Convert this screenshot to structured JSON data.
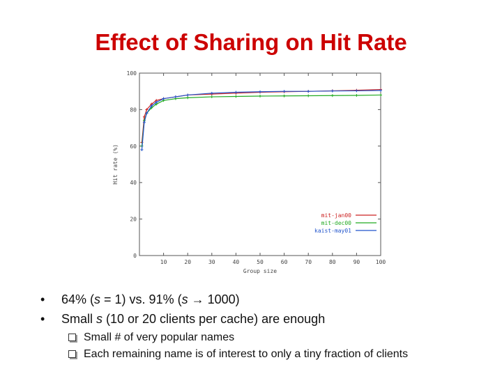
{
  "slide": {
    "title": "Effect of Sharing on Hit Rate",
    "bullets": [
      {
        "prefix": "64%  (",
        "v1": "s",
        "mid": " = 1) vs. 91% (",
        "v2": "s",
        "suffix": " → 1000)"
      },
      {
        "prefix": "Small  ",
        "v1": "s",
        "mid": " (10 or 20 clients per cache) are enough",
        "v2": "",
        "suffix": ""
      }
    ],
    "sub_bullets": [
      "Small # of very popular names",
      "Each remaining name is of interest to only a tiny fraction of clients"
    ],
    "bullet_glyph": "•"
  },
  "chart_data": {
    "type": "line",
    "xlabel": "Group size",
    "ylabel": "Hit rate (%)",
    "xlim": [
      0,
      100
    ],
    "ylim": [
      0,
      100
    ],
    "x_ticks": [
      10,
      20,
      30,
      40,
      50,
      60,
      70,
      80,
      90,
      100
    ],
    "y_ticks": [
      0,
      20,
      40,
      60,
      80,
      100
    ],
    "x_tick_labels": [
      "10",
      "20",
      "30",
      "40",
      "50",
      "60",
      "70",
      "80",
      "90",
      "100"
    ],
    "y_tick_labels": [
      "0",
      "20",
      "40",
      "60",
      "80",
      "100"
    ],
    "legend_position": "bottom-right",
    "x": [
      1,
      2,
      3,
      5,
      7,
      10,
      15,
      20,
      30,
      40,
      50,
      60,
      70,
      80,
      90,
      100
    ],
    "series": [
      {
        "name": "mit-jan00",
        "color": "#cc2222",
        "values": [
          62,
          76,
          80,
          83,
          85,
          86,
          87,
          88,
          88.5,
          89,
          89.5,
          89.8,
          90,
          90.3,
          90.6,
          91
        ]
      },
      {
        "name": "mit-dec00",
        "color": "#22aa22",
        "values": [
          60,
          74,
          78,
          81,
          83,
          85,
          86,
          86.5,
          87,
          87.2,
          87.4,
          87.5,
          87.6,
          87.7,
          87.8,
          88
        ]
      },
      {
        "name": "kaist-may01",
        "color": "#2255cc",
        "values": [
          58,
          73,
          78,
          82,
          84,
          86,
          87,
          88,
          89,
          89.5,
          89.8,
          90,
          90,
          90.2,
          90.3,
          90.5
        ]
      }
    ]
  }
}
